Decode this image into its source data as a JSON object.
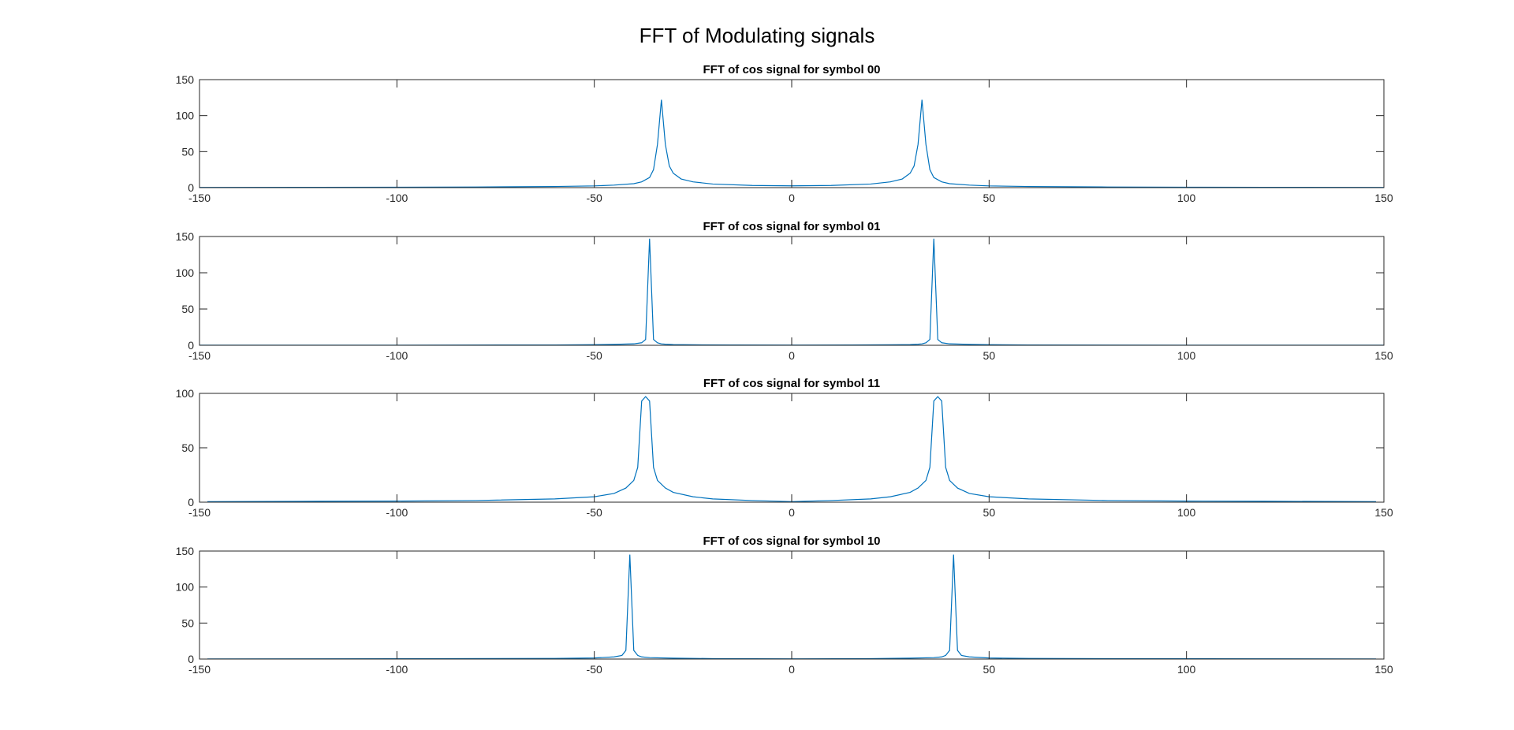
{
  "figure": {
    "title": "FFT of Modulating signals",
    "line_color": "#0072BD",
    "axes_color": "#262626"
  },
  "chart_data": [
    {
      "type": "line",
      "title": "FFT of cos signal for symbol 00",
      "xlabel": "",
      "ylabel": "",
      "xlim": [
        -150,
        150
      ],
      "ylim": [
        0,
        150
      ],
      "xticks": [
        -150,
        -100,
        -50,
        0,
        50,
        100,
        150
      ],
      "yticks": [
        0,
        50,
        100,
        150
      ],
      "grid": false,
      "series": [
        {
          "x": [
            -150,
            -120,
            -100,
            -80,
            -60,
            -50,
            -45,
            -40,
            -38,
            -36,
            -35,
            -34,
            -33,
            -32,
            -31,
            -30,
            -28,
            -25,
            -20,
            -10,
            0,
            10,
            20,
            25,
            28,
            30,
            31,
            32,
            33,
            34,
            35,
            36,
            38,
            40,
            45,
            50,
            60,
            80,
            100,
            120,
            150
          ],
          "y": [
            0.3,
            0.4,
            0.6,
            0.9,
            1.6,
            2.4,
            3.5,
            5.5,
            8,
            14,
            25,
            60,
            122,
            60,
            30,
            20,
            12,
            8,
            5,
            3,
            2.5,
            3,
            5,
            8,
            12,
            20,
            30,
            60,
            122,
            60,
            25,
            14,
            8,
            5.5,
            3.5,
            2.4,
            1.6,
            0.9,
            0.6,
            0.4,
            0.3
          ]
        }
      ]
    },
    {
      "type": "line",
      "title": "FFT of cos signal for symbol 01",
      "xlabel": "",
      "ylabel": "",
      "xlim": [
        -150,
        150
      ],
      "ylim": [
        0,
        150
      ],
      "xticks": [
        -150,
        -100,
        -50,
        0,
        50,
        100,
        150
      ],
      "yticks": [
        0,
        50,
        100,
        150
      ],
      "grid": false,
      "series": [
        {
          "x": [
            -150,
            -100,
            -60,
            -50,
            -45,
            -40,
            -38,
            -37,
            -36,
            -35,
            -34,
            -33,
            -32,
            -30,
            -25,
            -15,
            0,
            15,
            25,
            30,
            32,
            33,
            34,
            35,
            36,
            37,
            38,
            40,
            45,
            50,
            60,
            100,
            150
          ],
          "y": [
            0.1,
            0.2,
            0.5,
            0.8,
            1.2,
            2,
            3.5,
            8,
            147,
            8,
            3.5,
            2,
            1.5,
            1,
            0.7,
            0.4,
            0.3,
            0.4,
            0.7,
            1,
            1.5,
            2,
            3.5,
            8,
            147,
            8,
            3.5,
            2,
            1.2,
            0.8,
            0.5,
            0.2,
            0.1
          ]
        }
      ]
    },
    {
      "type": "line",
      "title": "FFT of cos signal for symbol 11",
      "xlabel": "",
      "ylabel": "",
      "xlim": [
        -150,
        150
      ],
      "ylim": [
        0,
        100
      ],
      "xticks": [
        -150,
        -100,
        -50,
        0,
        50,
        100,
        150
      ],
      "yticks": [
        0,
        50,
        100
      ],
      "grid": false,
      "series": [
        {
          "x": [
            -148,
            -120,
            -100,
            -80,
            -60,
            -50,
            -45,
            -42,
            -40,
            -39,
            -38,
            -37,
            -36,
            -35,
            -34,
            -32,
            -30,
            -25,
            -20,
            -10,
            0,
            10,
            20,
            25,
            30,
            32,
            34,
            35,
            36,
            37,
            38,
            39,
            40,
            42,
            45,
            50,
            60,
            80,
            100,
            120,
            148
          ],
          "y": [
            0.5,
            0.8,
            1,
            1.5,
            3,
            5,
            8,
            13,
            20,
            32,
            93,
            97,
            93,
            32,
            20,
            13,
            9,
            5,
            3,
            1.5,
            0.5,
            1.5,
            3,
            5,
            9,
            13,
            20,
            32,
            93,
            97,
            93,
            32,
            20,
            13,
            8,
            5,
            3,
            1.5,
            1,
            0.8,
            0.5
          ]
        }
      ]
    },
    {
      "type": "line",
      "title": "FFT of cos signal for symbol 10",
      "xlabel": "",
      "ylabel": "",
      "xlim": [
        -150,
        150
      ],
      "ylim": [
        0,
        150
      ],
      "xticks": [
        -150,
        -100,
        -50,
        0,
        50,
        100,
        150
      ],
      "yticks": [
        0,
        50,
        100,
        150
      ],
      "grid": false,
      "series": [
        {
          "x": [
            -148,
            -100,
            -60,
            -50,
            -45,
            -43,
            -42,
            -41,
            -40,
            -39,
            -38,
            -36,
            -30,
            -20,
            0,
            20,
            30,
            36,
            38,
            39,
            40,
            41,
            42,
            43,
            45,
            50,
            60,
            100,
            148
          ],
          "y": [
            0.2,
            0.4,
            0.8,
            1.5,
            3,
            5,
            12,
            145,
            12,
            5,
            3,
            2,
            1.2,
            0.6,
            0.3,
            0.6,
            1.2,
            2,
            3,
            5,
            12,
            145,
            12,
            5,
            3,
            1.5,
            0.8,
            0.4,
            0.2
          ]
        }
      ]
    }
  ]
}
